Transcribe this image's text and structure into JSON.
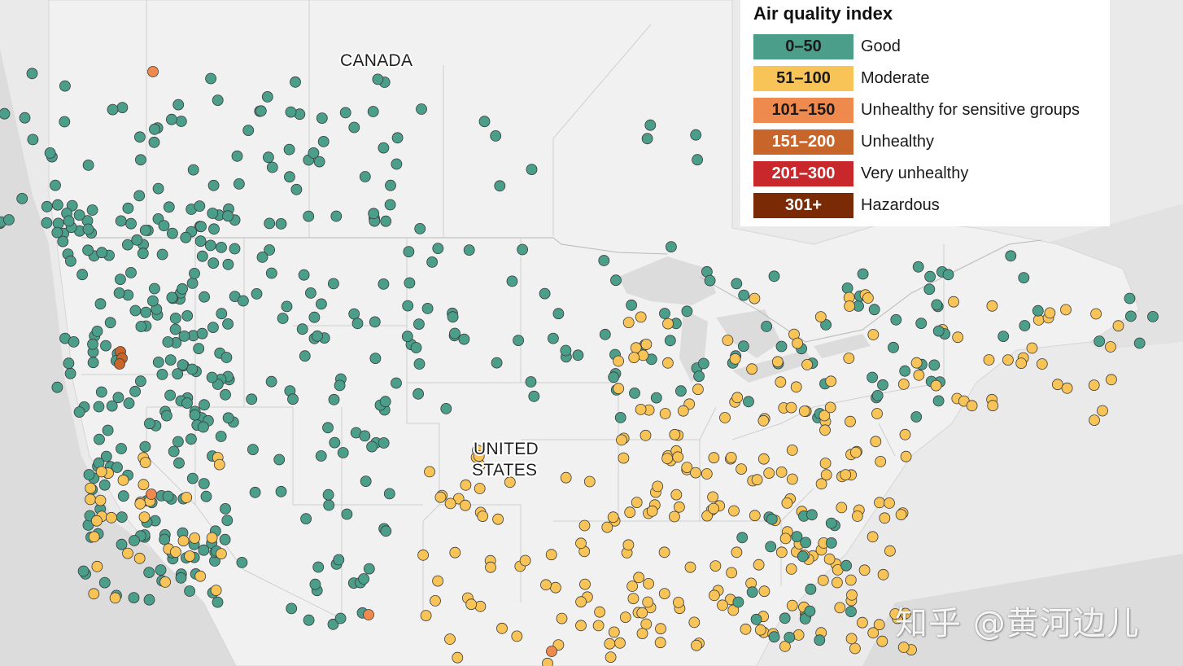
{
  "map": {
    "labels": {
      "canada": "CANADA",
      "us_line1": "UNITED",
      "us_line2": "STATES"
    }
  },
  "legend": {
    "title": "Air quality index",
    "items": [
      {
        "range": "0–50",
        "label": "Good",
        "color": "#4a9e8a",
        "text_color": "#1a1a1a"
      },
      {
        "range": "51–100",
        "label": "Moderate",
        "color": "#f9c457",
        "text_color": "#1a1a1a"
      },
      {
        "range": "101–150",
        "label": "Unhealthy for sensitive groups",
        "color": "#ef8a4f",
        "text_color": "#1a1a1a"
      },
      {
        "range": "151–200",
        "label": "Unhealthy",
        "color": "#c8652a",
        "text_color": "#ffffff"
      },
      {
        "range": "201–300",
        "label": "Very unhealthy",
        "color": "#c8282b",
        "text_color": "#ffffff"
      },
      {
        "range": "301+",
        "label": "Hazardous",
        "color": "#7a2a05",
        "text_color": "#ffffff"
      }
    ]
  },
  "watermark": "知乎 @黄河边儿"
}
